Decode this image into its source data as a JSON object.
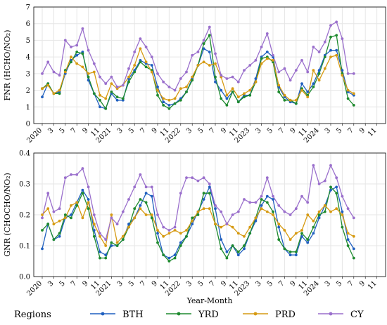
{
  "chart_data": [
    {
      "type": "line",
      "ylabel": "FNR (HCHO/NO₂)",
      "ylim": [
        0,
        7
      ],
      "yticks": [
        0,
        1,
        2,
        3,
        4,
        5,
        6,
        7
      ],
      "grid": true,
      "series": [
        {
          "name": "BTH",
          "color": "#1f5fbf",
          "values": [
            1.6,
            2.4,
            1.8,
            1.9,
            3.0,
            3.8,
            4.1,
            4.3,
            2.6,
            1.8,
            1.0,
            0.9,
            1.8,
            1.4,
            1.4,
            2.7,
            3.2,
            3.8,
            3.6,
            3.5,
            2.2,
            1.3,
            1.1,
            1.2,
            1.5,
            1.9,
            2.7,
            3.5,
            4.5,
            4.3,
            2.5,
            2.0,
            1.5,
            1.9,
            1.3,
            1.7,
            1.7,
            2.7,
            4.0,
            4.3,
            4.0,
            2.2,
            1.6,
            1.3,
            1.2,
            2.4,
            1.9,
            2.4,
            3.2,
            4.1,
            4.4,
            4.4,
            3.2,
            1.9,
            1.7
          ]
        },
        {
          "name": "YRD",
          "color": "#1e8a2e",
          "values": [
            2.1,
            2.4,
            1.8,
            1.8,
            3.2,
            3.7,
            4.3,
            4.2,
            2.8,
            1.8,
            1.4,
            0.9,
            1.9,
            1.6,
            1.5,
            2.5,
            3.1,
            3.7,
            3.4,
            3.2,
            1.7,
            1.1,
            0.9,
            1.2,
            1.4,
            1.9,
            2.6,
            3.5,
            4.8,
            5.3,
            2.8,
            1.5,
            1.1,
            1.9,
            1.3,
            1.6,
            1.7,
            2.5,
            3.9,
            4.0,
            3.7,
            1.9,
            1.4,
            1.4,
            1.2,
            2.1,
            1.7,
            2.2,
            3.0,
            4.0,
            5.2,
            5.3,
            3.0,
            1.5,
            1.1
          ]
        },
        {
          "name": "PRD",
          "color": "#d69a12",
          "values": [
            2.1,
            2.3,
            1.8,
            2.0,
            3.1,
            4.0,
            3.6,
            3.4,
            3.0,
            3.1,
            1.7,
            1.5,
            2.4,
            2.1,
            2.3,
            2.8,
            3.5,
            4.5,
            3.7,
            3.1,
            2.0,
            1.5,
            1.4,
            1.5,
            2.1,
            2.2,
            2.8,
            3.5,
            3.7,
            3.5,
            3.6,
            2.8,
            1.7,
            2.1,
            1.6,
            1.8,
            2.0,
            2.5,
            3.6,
            3.9,
            3.8,
            2.3,
            1.7,
            1.4,
            1.4,
            2.0,
            1.6,
            3.2,
            2.6,
            3.3,
            4.0,
            4.1,
            2.9,
            2.0,
            1.8
          ]
        },
        {
          "name": "CY",
          "color": "#9a6fcc",
          "values": [
            3.0,
            3.7,
            3.1,
            2.9,
            5.0,
            4.6,
            4.7,
            5.7,
            4.4,
            3.6,
            2.8,
            2.4,
            2.8,
            2.2,
            2.3,
            3.3,
            4.3,
            5.1,
            4.6,
            4.0,
            3.0,
            2.5,
            2.2,
            2.0,
            2.7,
            3.1,
            4.1,
            4.3,
            5.0,
            5.8,
            4.2,
            2.9,
            2.7,
            2.8,
            2.5,
            3.2,
            3.5,
            3.8,
            4.6,
            5.4,
            4.1,
            3.1,
            3.3,
            2.6,
            3.2,
            3.8,
            3.1,
            4.6,
            4.3,
            4.9,
            5.9,
            6.1,
            5.1,
            3.0,
            3.0
          ]
        }
      ]
    },
    {
      "type": "line",
      "ylabel": "GNR (CHOCHO/NO₂)",
      "ylim": [
        0,
        0.4
      ],
      "yticks": [
        "0.0",
        "0.1",
        "0.2",
        "0.3",
        "0.4"
      ],
      "grid": true,
      "series": [
        {
          "name": "BTH",
          "color": "#1f5fbf",
          "values": [
            0.09,
            0.17,
            0.12,
            0.13,
            0.19,
            0.2,
            0.24,
            0.28,
            0.25,
            0.15,
            0.08,
            0.07,
            0.1,
            0.1,
            0.12,
            0.17,
            0.19,
            0.23,
            0.27,
            0.26,
            0.14,
            0.07,
            0.06,
            0.07,
            0.11,
            0.13,
            0.17,
            0.21,
            0.25,
            0.29,
            0.22,
            0.12,
            0.08,
            0.1,
            0.07,
            0.09,
            0.14,
            0.18,
            0.23,
            0.26,
            0.25,
            0.16,
            0.09,
            0.07,
            0.07,
            0.13,
            0.11,
            0.14,
            0.19,
            0.23,
            0.28,
            0.29,
            0.21,
            0.12,
            0.09
          ]
        },
        {
          "name": "YRD",
          "color": "#1e8a2e",
          "values": [
            0.15,
            0.17,
            0.12,
            0.14,
            0.2,
            0.19,
            0.23,
            0.27,
            0.22,
            0.13,
            0.06,
            0.06,
            0.11,
            0.1,
            0.12,
            0.16,
            0.22,
            0.25,
            0.24,
            0.19,
            0.11,
            0.07,
            0.05,
            0.06,
            0.1,
            0.13,
            0.19,
            0.2,
            0.27,
            0.27,
            0.17,
            0.09,
            0.06,
            0.1,
            0.08,
            0.1,
            0.14,
            0.19,
            0.25,
            0.24,
            0.21,
            0.12,
            0.09,
            0.08,
            0.08,
            0.14,
            0.12,
            0.16,
            0.2,
            0.21,
            0.29,
            0.27,
            0.16,
            0.1,
            0.06
          ]
        },
        {
          "name": "PRD",
          "color": "#d69a12",
          "values": [
            0.2,
            0.22,
            0.17,
            0.18,
            0.19,
            0.23,
            0.24,
            0.19,
            0.24,
            0.17,
            0.13,
            0.1,
            0.2,
            0.11,
            0.13,
            0.16,
            0.19,
            0.22,
            0.2,
            0.2,
            0.15,
            0.13,
            0.14,
            0.15,
            0.14,
            0.15,
            0.18,
            0.21,
            0.22,
            0.22,
            0.17,
            0.16,
            0.17,
            0.16,
            0.14,
            0.13,
            0.16,
            0.19,
            0.22,
            0.21,
            0.2,
            0.17,
            0.15,
            0.12,
            0.14,
            0.15,
            0.2,
            0.18,
            0.21,
            0.23,
            0.21,
            0.22,
            0.2,
            0.14,
            0.13
          ]
        },
        {
          "name": "CY",
          "color": "#9a6fcc",
          "values": [
            0.19,
            0.27,
            0.21,
            0.22,
            0.32,
            0.33,
            0.33,
            0.35,
            0.29,
            0.2,
            0.14,
            0.12,
            0.19,
            0.17,
            0.21,
            0.25,
            0.29,
            0.33,
            0.29,
            0.29,
            0.2,
            0.16,
            0.15,
            0.16,
            0.27,
            0.32,
            0.32,
            0.31,
            0.32,
            0.3,
            0.23,
            0.21,
            0.17,
            0.2,
            0.21,
            0.25,
            0.24,
            0.24,
            0.26,
            0.32,
            0.26,
            0.23,
            0.21,
            0.2,
            0.22,
            0.26,
            0.24,
            0.36,
            0.3,
            0.31,
            0.36,
            0.32,
            0.26,
            0.22,
            0.19
          ]
        }
      ]
    }
  ],
  "x_tick_labels": [
    "2020",
    "3",
    "5",
    "7",
    "9",
    "11",
    "2021",
    "3",
    "5",
    "7",
    "9",
    "11",
    "2022",
    "3",
    "5",
    "7",
    "9",
    "11",
    "2023",
    "3",
    "5",
    "7",
    "9",
    "11",
    "2024",
    "3",
    "5",
    "7",
    "9",
    "11"
  ],
  "xlabel": "Year-Month",
  "legend": {
    "title": "Regions",
    "items": [
      "BTH",
      "YRD",
      "PRD",
      "CY"
    ]
  }
}
